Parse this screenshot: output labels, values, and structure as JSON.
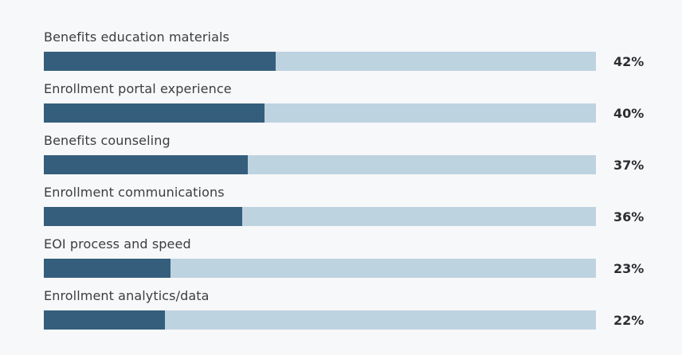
{
  "chart_data": {
    "type": "bar",
    "orientation": "horizontal",
    "title": "",
    "xlabel": "",
    "ylabel": "",
    "xlim": [
      0,
      100
    ],
    "grid": false,
    "legend": null,
    "categories": [
      "Benefits education materials",
      "Enrollment portal experience",
      "Benefits counseling",
      "Enrollment communications",
      "EOI process and speed",
      "Enrollment analytics/data"
    ],
    "values": [
      42,
      40,
      37,
      36,
      23,
      22
    ],
    "labels": [
      "42%",
      "40%",
      "37%",
      "36%",
      "23%",
      "22%"
    ],
    "colors": {
      "bar_fill": "#345e7c",
      "bar_track": "#bed3e0",
      "background": "#f7f8fa",
      "category_text": "#3d3d3d",
      "value_text": "#2b2d30"
    }
  }
}
